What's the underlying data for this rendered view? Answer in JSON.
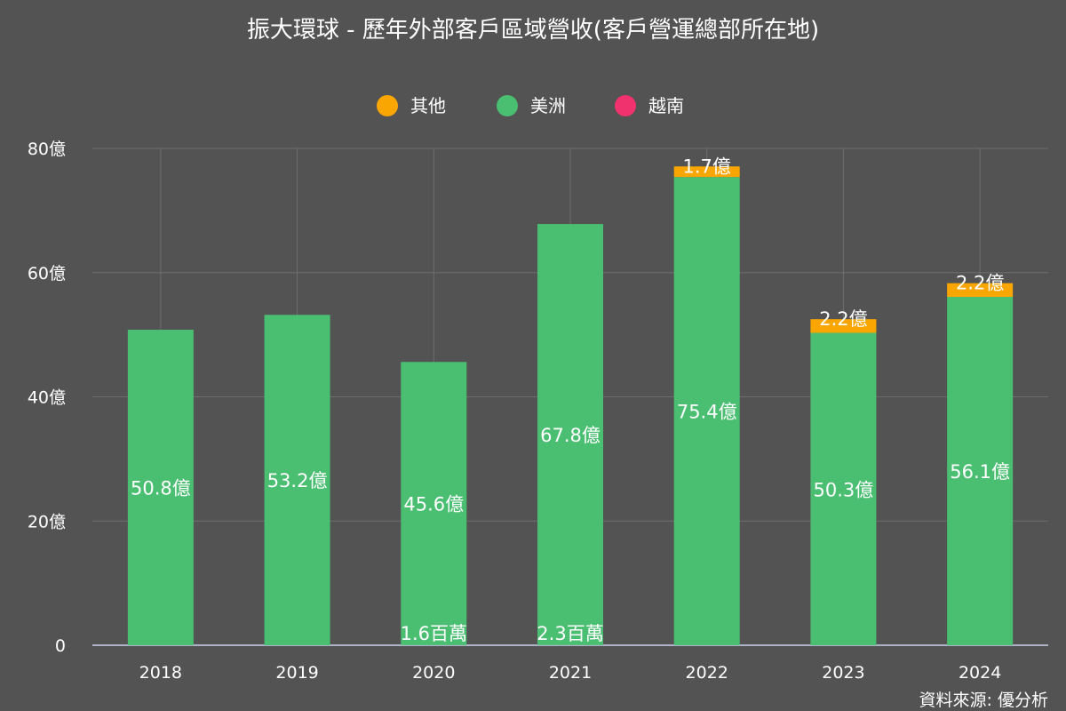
{
  "chart_data": {
    "type": "bar",
    "stacked": true,
    "title": "振大環球 - 歷年外部客戶區域營收(客戶營運總部所在地)",
    "categories": [
      "2018",
      "2019",
      "2020",
      "2021",
      "2022",
      "2023",
      "2024"
    ],
    "series": [
      {
        "name": "越南",
        "color": "#f0326e",
        "values": [
          0,
          0,
          0.016,
          0.023,
          0,
          0,
          0
        ],
        "labels": [
          "",
          "",
          "1.6百萬",
          "2.3百萬",
          "",
          "",
          ""
        ]
      },
      {
        "name": "美洲",
        "color": "#4abf72",
        "values": [
          50.8,
          53.2,
          45.6,
          67.8,
          75.4,
          50.3,
          56.1
        ],
        "labels": [
          "50.8億",
          "53.2億",
          "45.6億",
          "67.8億",
          "75.4億",
          "50.3億",
          "56.1億"
        ]
      },
      {
        "name": "其他",
        "color": "#f9a602",
        "values": [
          0,
          0,
          0,
          0,
          1.7,
          2.2,
          2.2
        ],
        "labels": [
          "",
          "",
          "",
          "",
          "1.7億",
          "2.2億",
          "2.2億"
        ]
      }
    ],
    "legend_order": [
      "其他",
      "美洲",
      "越南"
    ],
    "legend_position": "top",
    "ylim": [
      0,
      80
    ],
    "yticks": [
      0,
      20,
      40,
      60,
      80
    ],
    "ytick_labels": [
      "0",
      "20億",
      "40億",
      "60億",
      "80億"
    ],
    "grid": true
  },
  "source": "資料來源: 優分析",
  "colors": {
    "background": "#535353",
    "grid": "#6e6e6e",
    "axis": "#c9d1ee"
  }
}
